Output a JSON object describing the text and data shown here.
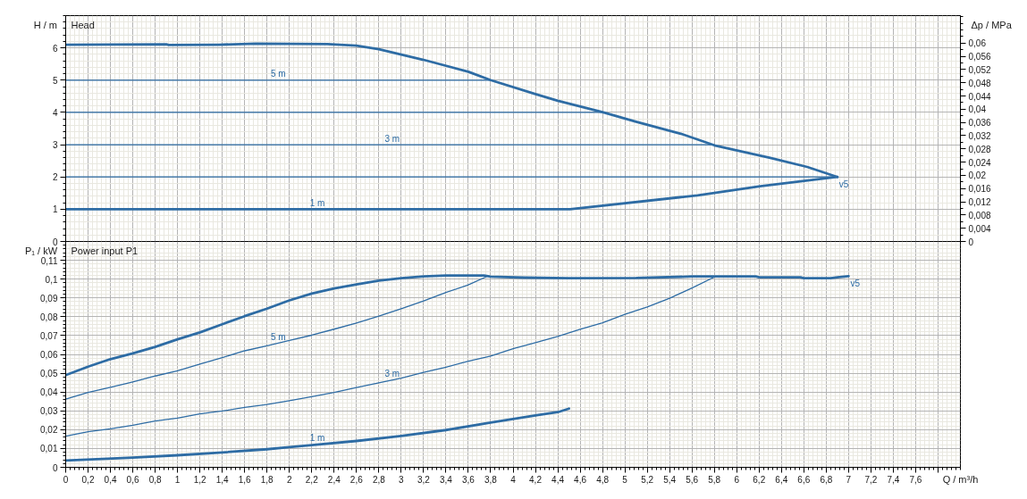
{
  "chart_data": [
    {
      "type": "line",
      "title": "Head",
      "ylabel": "H / m",
      "y2label": "Δp / MPa",
      "xlim": [
        0,
        8
      ],
      "xticks": [
        0,
        0.2,
        0.4,
        0.6,
        0.8,
        1,
        1.2,
        1.4,
        1.6,
        1.8,
        2,
        2.2,
        2.4,
        2.6,
        2.8,
        3,
        3.2,
        3.4,
        3.6,
        3.8,
        4,
        4.2,
        4.4,
        4.6,
        4.8,
        5,
        5.2,
        5.4,
        5.6,
        5.8,
        6,
        6.2,
        6.4,
        6.6,
        6.8,
        7,
        7.2,
        7.4,
        7.6,
        7.8
      ],
      "ylim": [
        0,
        7
      ],
      "yticks": [
        0,
        1,
        2,
        3,
        4,
        5,
        6
      ],
      "y2lim": [
        0,
        0.0683
      ],
      "y2ticks": [
        0,
        {
          "value": 0.004,
          "label": "0,004"
        },
        {
          "value": 0.008,
          "label": "0,008"
        },
        {
          "value": 0.012,
          "label": "0,012"
        },
        {
          "value": 0.016,
          "label": "0,016"
        },
        {
          "value": 0.02,
          "label": "0,02"
        },
        {
          "value": 0.024,
          "label": "0,024"
        },
        {
          "value": 0.028,
          "label": "0,028"
        },
        {
          "value": 0.032,
          "label": "0,032"
        },
        {
          "value": 0.036,
          "label": "0,036"
        },
        {
          "value": 0.04,
          "label": "0,04"
        },
        {
          "value": 0.044,
          "label": "0,044"
        },
        {
          "value": 0.048,
          "label": "0,048"
        },
        {
          "value": 0.052,
          "label": "0,052"
        },
        {
          "value": 0.056,
          "label": "0,056"
        },
        {
          "value": 0.06,
          "label": "0,06"
        }
      ],
      "grid": true,
      "tick_labels": "y",
      "series": [
        {
          "color": "#2e6ca4",
          "x": [
            0,
            0.9,
            0.92,
            1.37,
            1.7,
            2.34,
            2.6,
            2.8,
            3.2,
            3.6,
            3.8,
            4.2,
            4.4,
            4.8,
            5.1,
            5.5,
            5.8,
            6.3,
            6.63,
            6.9
          ],
          "values": [
            6.1,
            6.11,
            6.09,
            6.1,
            6.13,
            6.12,
            6.07,
            5.96,
            5.63,
            5.26,
            5.0,
            4.57,
            4.36,
            4.01,
            3.71,
            3.34,
            2.98,
            2.59,
            2.31,
            2.0
          ]
        },
        {
          "color": "#2e6ca4",
          "x": [
            0,
            4.51,
            5.49,
            5.65,
            6.21,
            6.9
          ],
          "values": [
            1,
            1,
            1.37,
            1.43,
            1.71,
            2.0
          ]
        },
        {
          "color": "#2e6ca4",
          "x": [
            0,
            3.8
          ],
          "values": [
            5,
            5
          ]
        },
        {
          "color": "#2e6ca4",
          "x": [
            0,
            4.79
          ],
          "values": [
            4,
            4
          ]
        },
        {
          "color": "#2e6ca4",
          "x": [
            0,
            5.8
          ],
          "values": [
            3,
            3
          ]
        },
        {
          "color": "#2e6ca4",
          "x": [
            0,
            6.9
          ],
          "values": [
            2,
            2
          ]
        }
      ],
      "annotations": [
        {
          "text": "5 m",
          "x": 1.9,
          "y": 5
        },
        {
          "text": "3 m",
          "x": 2.92,
          "y": 3
        },
        {
          "text": "1 m",
          "x": 2.25,
          "y": 1
        },
        {
          "text": "v5",
          "x": 6.9,
          "y": 2.0
        }
      ]
    },
    {
      "type": "line",
      "title": "Power input P1",
      "ylabel": "P₁ / kW",
      "xlabel": "Q / m³/h",
      "xlim": [
        0,
        8
      ],
      "xticks": [
        0,
        {
          "value": 0.2,
          "label": "0,2"
        },
        {
          "value": 0.4,
          "label": "0,4"
        },
        {
          "value": 0.6,
          "label": "0,6"
        },
        {
          "value": 0.8,
          "label": "0,8"
        },
        1,
        {
          "value": 1.2,
          "label": "1,2"
        },
        {
          "value": 1.4,
          "label": "1,4"
        },
        {
          "value": 1.6,
          "label": "1,6"
        },
        {
          "value": 1.8,
          "label": "1,8"
        },
        2,
        {
          "value": 2.2,
          "label": "2,2"
        },
        {
          "value": 2.4,
          "label": "2,4"
        },
        {
          "value": 2.6,
          "label": "2,6"
        },
        {
          "value": 2.8,
          "label": "2,8"
        },
        3,
        {
          "value": 3.2,
          "label": "3,2"
        },
        {
          "value": 3.4,
          "label": "3,4"
        },
        {
          "value": 3.6,
          "label": "3,6"
        },
        {
          "value": 3.8,
          "label": "3,8"
        },
        4,
        {
          "value": 4.2,
          "label": "4,2"
        },
        {
          "value": 4.4,
          "label": "4,4"
        },
        {
          "value": 4.6,
          "label": "4,6"
        },
        {
          "value": 4.8,
          "label": "4,8"
        },
        5,
        {
          "value": 5.2,
          "label": "5,2"
        },
        {
          "value": 5.4,
          "label": "5,4"
        },
        {
          "value": 5.6,
          "label": "5,6"
        },
        {
          "value": 5.8,
          "label": "5,8"
        },
        6,
        {
          "value": 6.2,
          "label": "6,2"
        },
        {
          "value": 6.4,
          "label": "6,4"
        },
        {
          "value": 6.6,
          "label": "6,6"
        },
        {
          "value": 6.8,
          "label": "6,8"
        },
        7,
        {
          "value": 7.2,
          "label": "7,2"
        },
        {
          "value": 7.4,
          "label": "7,4"
        },
        {
          "value": 7.6,
          "label": "7,6"
        },
        {
          "value": 7.8,
          "label": null
        }
      ],
      "ylim": [
        0,
        0.12
      ],
      "yticks": [
        0,
        {
          "value": 0.01,
          "label": "0,01"
        },
        {
          "value": 0.02,
          "label": "0,02"
        },
        {
          "value": 0.03,
          "label": "0,03"
        },
        {
          "value": 0.04,
          "label": "0,04"
        },
        {
          "value": 0.05,
          "label": "0,05"
        },
        {
          "value": 0.06,
          "label": "0,06"
        },
        {
          "value": 0.07,
          "label": "0,07"
        },
        {
          "value": 0.08,
          "label": "0,08"
        },
        {
          "value": 0.09,
          "label": "0,09"
        },
        {
          "value": 0.1,
          "label": "0,1"
        },
        {
          "value": 0.11,
          "label": "0,11"
        }
      ],
      "grid": true,
      "series": [
        {
          "color": "#2e6ca4",
          "x": [
            0,
            0.2,
            0.4,
            0.6,
            0.8,
            1,
            1.2,
            1.4,
            1.6,
            1.8,
            2,
            2.2,
            2.4,
            2.6,
            2.8,
            3,
            3.2,
            3.4,
            3.74,
            3.8,
            4.1,
            4.5,
            5.1,
            5.6,
            6.17,
            6.2,
            6.57,
            6.6,
            6.84,
            6.9,
            7
          ],
          "values": [
            0.049,
            0.0535,
            0.0575,
            0.0605,
            0.064,
            0.068,
            0.0717,
            0.076,
            0.0803,
            0.0843,
            0.0887,
            0.0923,
            0.095,
            0.0972,
            0.0992,
            0.1005,
            0.1014,
            0.1019,
            0.1019,
            0.1013,
            0.1008,
            0.1005,
            0.1006,
            0.1014,
            0.1014,
            0.101,
            0.101,
            0.1005,
            0.1005,
            0.101,
            0.1016
          ]
        },
        {
          "color": "#2e6ca4",
          "x": [
            0,
            0.6,
            1,
            1.4,
            1.8,
            2,
            2.2,
            2.6,
            3,
            3.4,
            3.8,
            4.2,
            4.4,
            4.5
          ],
          "values": [
            0.0036,
            0.0052,
            0.0064,
            0.0079,
            0.0096,
            0.0107,
            0.0118,
            0.014,
            0.0167,
            0.0198,
            0.0238,
            0.0276,
            0.0293,
            0.0312
          ]
        },
        {
          "color": "#2e6ca4",
          "x": [
            0,
            0.2,
            0.4,
            0.6,
            0.8,
            1,
            1.2,
            1.4,
            1.6,
            1.8,
            2,
            2.2,
            2.4,
            2.6,
            2.8,
            3,
            3.2,
            3.4,
            3.6,
            3.77
          ],
          "values": [
            0.0362,
            0.0398,
            0.0425,
            0.0454,
            0.0485,
            0.0513,
            0.0548,
            0.0583,
            0.0619,
            0.0646,
            0.0674,
            0.0702,
            0.0734,
            0.0767,
            0.0803,
            0.0843,
            0.0884,
            0.0929,
            0.0969,
            0.1015
          ]
        },
        {
          "color": "#2e6ca4",
          "x": [
            0,
            0.2,
            0.4,
            0.6,
            0.8,
            1,
            1.2,
            1.4,
            1.6,
            1.8,
            2,
            2.2,
            2.4,
            2.6,
            2.8,
            3,
            3.2,
            3.4,
            3.6,
            3.8,
            4,
            4.2,
            4.4,
            4.6,
            4.8,
            5,
            5.2,
            5.4,
            5.6,
            5.81
          ],
          "values": [
            0.0165,
            0.0189,
            0.0205,
            0.0224,
            0.0246,
            0.0261,
            0.0284,
            0.0299,
            0.0318,
            0.0334,
            0.0354,
            0.0375,
            0.0398,
            0.0424,
            0.0449,
            0.0474,
            0.0504,
            0.0532,
            0.0564,
            0.0591,
            0.063,
            0.0662,
            0.0695,
            0.0733,
            0.0768,
            0.0813,
            0.0852,
            0.0898,
            0.0953,
            0.1014
          ]
        }
      ],
      "annotations": [
        {
          "text": "5 m",
          "x": 1.9,
          "y": 0.066
        },
        {
          "text": "3 m",
          "x": 2.92,
          "y": 0.0464
        },
        {
          "text": "1 m",
          "x": 2.25,
          "y": 0.0121
        },
        {
          "text": "v5",
          "x": 7,
          "y": 0.1016
        }
      ]
    }
  ]
}
